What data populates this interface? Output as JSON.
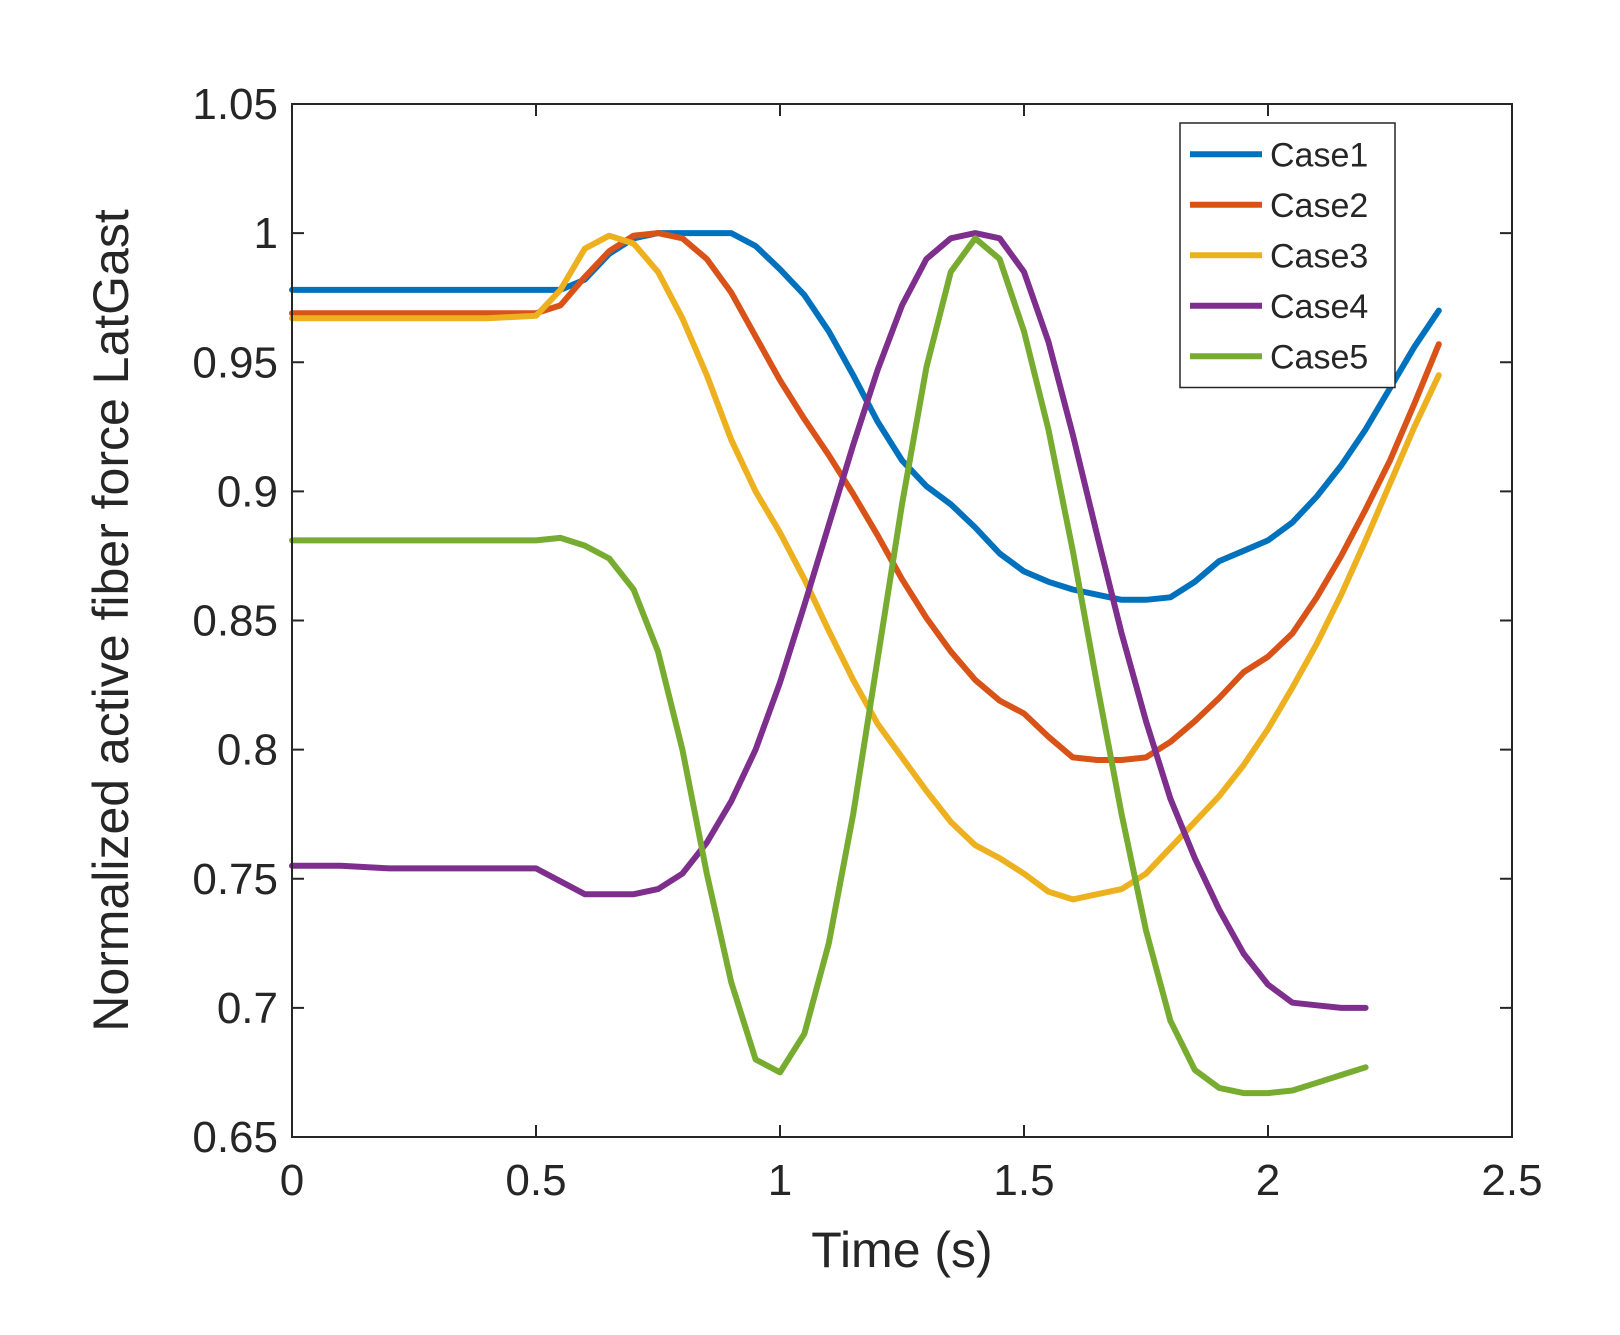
{
  "chart_data": {
    "type": "line",
    "xlabel": "Time (s)",
    "ylabel": "Normalized active fiber force  LatGast",
    "xlim": [
      0,
      2.5
    ],
    "ylim": [
      0.65,
      1.05
    ],
    "xticks": [
      0,
      0.5,
      1,
      1.5,
      2,
      2.5
    ],
    "xtick_labels": [
      "0",
      "0.5",
      "1",
      "1.5",
      "2",
      "2.5"
    ],
    "yticks": [
      0.65,
      0.7,
      0.75,
      0.8,
      0.85,
      0.9,
      0.95,
      1,
      1.05
    ],
    "ytick_labels": [
      "0.65",
      "0.7",
      "0.75",
      "0.8",
      "0.85",
      "0.9",
      "0.95",
      "1",
      "1.05"
    ],
    "legend_position": "top-right",
    "series": [
      {
        "name": "Case1",
        "color": "#0072BD",
        "points": [
          [
            0,
            0.978
          ],
          [
            0.1,
            0.978
          ],
          [
            0.2,
            0.978
          ],
          [
            0.3,
            0.978
          ],
          [
            0.4,
            0.978
          ],
          [
            0.5,
            0.978
          ],
          [
            0.55,
            0.978
          ],
          [
            0.6,
            0.982
          ],
          [
            0.65,
            0.992
          ],
          [
            0.7,
            0.998
          ],
          [
            0.75,
            1.0
          ],
          [
            0.8,
            1.0
          ],
          [
            0.85,
            1.0
          ],
          [
            0.9,
            1.0
          ],
          [
            0.95,
            0.995
          ],
          [
            1.0,
            0.986
          ],
          [
            1.05,
            0.976
          ],
          [
            1.1,
            0.962
          ],
          [
            1.15,
            0.945
          ],
          [
            1.2,
            0.927
          ],
          [
            1.25,
            0.912
          ],
          [
            1.3,
            0.902
          ],
          [
            1.35,
            0.895
          ],
          [
            1.4,
            0.886
          ],
          [
            1.45,
            0.876
          ],
          [
            1.5,
            0.869
          ],
          [
            1.55,
            0.865
          ],
          [
            1.6,
            0.862
          ],
          [
            1.65,
            0.86
          ],
          [
            1.7,
            0.858
          ],
          [
            1.75,
            0.858
          ],
          [
            1.8,
            0.859
          ],
          [
            1.85,
            0.865
          ],
          [
            1.9,
            0.873
          ],
          [
            1.95,
            0.877
          ],
          [
            2.0,
            0.881
          ],
          [
            2.05,
            0.888
          ],
          [
            2.1,
            0.898
          ],
          [
            2.15,
            0.91
          ],
          [
            2.2,
            0.924
          ],
          [
            2.25,
            0.94
          ],
          [
            2.3,
            0.956
          ],
          [
            2.35,
            0.97
          ]
        ]
      },
      {
        "name": "Case2",
        "color": "#D95319",
        "points": [
          [
            0,
            0.969
          ],
          [
            0.1,
            0.969
          ],
          [
            0.2,
            0.969
          ],
          [
            0.3,
            0.969
          ],
          [
            0.4,
            0.969
          ],
          [
            0.5,
            0.969
          ],
          [
            0.55,
            0.972
          ],
          [
            0.6,
            0.983
          ],
          [
            0.65,
            0.993
          ],
          [
            0.7,
            0.999
          ],
          [
            0.75,
            1.0
          ],
          [
            0.8,
            0.998
          ],
          [
            0.85,
            0.99
          ],
          [
            0.9,
            0.977
          ],
          [
            0.95,
            0.96
          ],
          [
            1.0,
            0.943
          ],
          [
            1.05,
            0.928
          ],
          [
            1.1,
            0.914
          ],
          [
            1.15,
            0.899
          ],
          [
            1.2,
            0.883
          ],
          [
            1.25,
            0.866
          ],
          [
            1.3,
            0.851
          ],
          [
            1.35,
            0.838
          ],
          [
            1.4,
            0.827
          ],
          [
            1.45,
            0.819
          ],
          [
            1.5,
            0.814
          ],
          [
            1.55,
            0.805
          ],
          [
            1.6,
            0.797
          ],
          [
            1.65,
            0.796
          ],
          [
            1.7,
            0.796
          ],
          [
            1.75,
            0.797
          ],
          [
            1.8,
            0.803
          ],
          [
            1.85,
            0.811
          ],
          [
            1.9,
            0.82
          ],
          [
            1.95,
            0.83
          ],
          [
            2.0,
            0.836
          ],
          [
            2.05,
            0.845
          ],
          [
            2.1,
            0.859
          ],
          [
            2.15,
            0.875
          ],
          [
            2.2,
            0.893
          ],
          [
            2.25,
            0.912
          ],
          [
            2.3,
            0.934
          ],
          [
            2.35,
            0.957
          ]
        ]
      },
      {
        "name": "Case3",
        "color": "#EDB120",
        "points": [
          [
            0,
            0.967
          ],
          [
            0.1,
            0.967
          ],
          [
            0.2,
            0.967
          ],
          [
            0.3,
            0.967
          ],
          [
            0.4,
            0.967
          ],
          [
            0.5,
            0.968
          ],
          [
            0.55,
            0.978
          ],
          [
            0.6,
            0.994
          ],
          [
            0.65,
            0.999
          ],
          [
            0.7,
            0.996
          ],
          [
            0.75,
            0.985
          ],
          [
            0.8,
            0.967
          ],
          [
            0.85,
            0.945
          ],
          [
            0.9,
            0.92
          ],
          [
            0.95,
            0.9
          ],
          [
            1.0,
            0.884
          ],
          [
            1.05,
            0.866
          ],
          [
            1.1,
            0.846
          ],
          [
            1.15,
            0.827
          ],
          [
            1.2,
            0.81
          ],
          [
            1.25,
            0.797
          ],
          [
            1.3,
            0.784
          ],
          [
            1.35,
            0.772
          ],
          [
            1.4,
            0.763
          ],
          [
            1.45,
            0.758
          ],
          [
            1.5,
            0.752
          ],
          [
            1.55,
            0.745
          ],
          [
            1.6,
            0.742
          ],
          [
            1.65,
            0.744
          ],
          [
            1.7,
            0.746
          ],
          [
            1.75,
            0.752
          ],
          [
            1.8,
            0.762
          ],
          [
            1.85,
            0.772
          ],
          [
            1.9,
            0.782
          ],
          [
            1.95,
            0.794
          ],
          [
            2.0,
            0.808
          ],
          [
            2.05,
            0.824
          ],
          [
            2.1,
            0.841
          ],
          [
            2.15,
            0.86
          ],
          [
            2.2,
            0.881
          ],
          [
            2.25,
            0.903
          ],
          [
            2.3,
            0.925
          ],
          [
            2.35,
            0.945
          ]
        ]
      },
      {
        "name": "Case4",
        "color": "#7E2F8E",
        "points": [
          [
            0,
            0.755
          ],
          [
            0.1,
            0.755
          ],
          [
            0.2,
            0.754
          ],
          [
            0.3,
            0.754
          ],
          [
            0.4,
            0.754
          ],
          [
            0.5,
            0.754
          ],
          [
            0.55,
            0.749
          ],
          [
            0.6,
            0.744
          ],
          [
            0.65,
            0.744
          ],
          [
            0.7,
            0.744
          ],
          [
            0.75,
            0.746
          ],
          [
            0.8,
            0.752
          ],
          [
            0.85,
            0.764
          ],
          [
            0.9,
            0.78
          ],
          [
            0.95,
            0.8
          ],
          [
            1.0,
            0.826
          ],
          [
            1.05,
            0.856
          ],
          [
            1.1,
            0.887
          ],
          [
            1.15,
            0.918
          ],
          [
            1.2,
            0.947
          ],
          [
            1.25,
            0.972
          ],
          [
            1.3,
            0.99
          ],
          [
            1.35,
            0.998
          ],
          [
            1.4,
            1.0
          ],
          [
            1.45,
            0.998
          ],
          [
            1.5,
            0.985
          ],
          [
            1.55,
            0.958
          ],
          [
            1.6,
            0.922
          ],
          [
            1.65,
            0.883
          ],
          [
            1.7,
            0.845
          ],
          [
            1.75,
            0.811
          ],
          [
            1.8,
            0.781
          ],
          [
            1.85,
            0.758
          ],
          [
            1.9,
            0.738
          ],
          [
            1.95,
            0.721
          ],
          [
            2.0,
            0.709
          ],
          [
            2.05,
            0.702
          ],
          [
            2.1,
            0.701
          ],
          [
            2.15,
            0.7
          ],
          [
            2.2,
            0.7
          ]
        ]
      },
      {
        "name": "Case5",
        "color": "#77AC30",
        "points": [
          [
            0,
            0.881
          ],
          [
            0.1,
            0.881
          ],
          [
            0.2,
            0.881
          ],
          [
            0.3,
            0.881
          ],
          [
            0.4,
            0.881
          ],
          [
            0.5,
            0.881
          ],
          [
            0.55,
            0.882
          ],
          [
            0.6,
            0.879
          ],
          [
            0.65,
            0.874
          ],
          [
            0.7,
            0.862
          ],
          [
            0.75,
            0.838
          ],
          [
            0.8,
            0.8
          ],
          [
            0.85,
            0.752
          ],
          [
            0.9,
            0.71
          ],
          [
            0.95,
            0.68
          ],
          [
            1.0,
            0.675
          ],
          [
            1.05,
            0.69
          ],
          [
            1.1,
            0.725
          ],
          [
            1.15,
            0.775
          ],
          [
            1.2,
            0.835
          ],
          [
            1.25,
            0.895
          ],
          [
            1.3,
            0.948
          ],
          [
            1.35,
            0.985
          ],
          [
            1.4,
            0.998
          ],
          [
            1.45,
            0.99
          ],
          [
            1.5,
            0.962
          ],
          [
            1.55,
            0.924
          ],
          [
            1.6,
            0.877
          ],
          [
            1.65,
            0.825
          ],
          [
            1.7,
            0.775
          ],
          [
            1.75,
            0.73
          ],
          [
            1.8,
            0.695
          ],
          [
            1.85,
            0.676
          ],
          [
            1.9,
            0.669
          ],
          [
            1.95,
            0.667
          ],
          [
            2.0,
            0.667
          ],
          [
            2.05,
            0.668
          ],
          [
            2.1,
            0.671
          ],
          [
            2.15,
            0.674
          ],
          [
            2.2,
            0.677
          ]
        ]
      }
    ]
  }
}
